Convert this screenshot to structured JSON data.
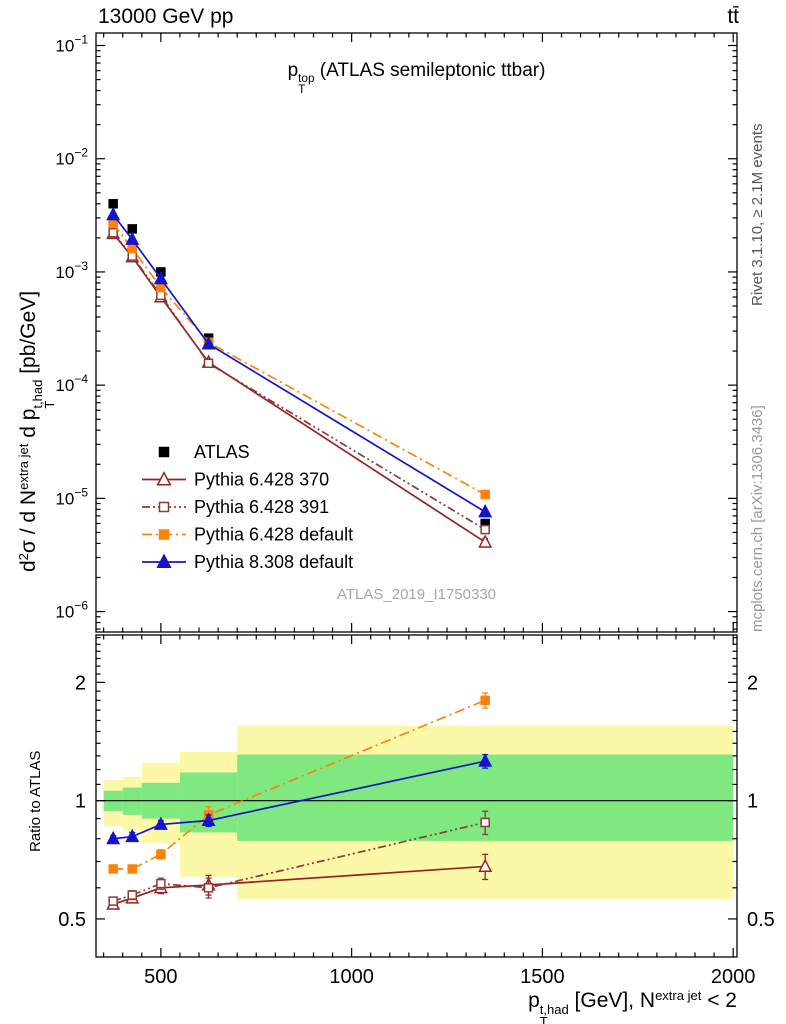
{
  "labels": {
    "header_left": "13000 GeV pp",
    "header_right": "tt̄",
    "title": {
      "base": "p",
      "sup": "top",
      "sub": "T",
      "rest": " (ATLAS semileptonic ttbar)"
    },
    "watermark": "ATLAS_2019_I1750330",
    "rivet": "Rivet 3.1.10, ≥ 2.1M events",
    "mcplots": "mcplots.cern.ch [arXiv:1306.3436]",
    "ylabel": {
      "p1": "d",
      "sup1": "2",
      "p2": "σ / d N",
      "sup2": "extra jet",
      "p3": " d p",
      "sup3": "t,had",
      "sub3": "T",
      "p4": " [pb/GeV]"
    },
    "ratio_ylabel": "Ratio to ATLAS",
    "xlabel": {
      "p1": "p",
      "sup1": "t,had",
      "sub1": "T",
      "p2": " [GeV], N",
      "sup2": "extra jet",
      "p3": " < 2"
    }
  },
  "chart_data": {
    "type": "line",
    "title": "pT^top (ATLAS semileptonic ttbar)",
    "xlabel": "pT^t,had [GeV], N^extra jet < 2",
    "ylabel": "d2sigma / d N^extra jet d pT^t,had [pb/GeV]",
    "ratio_label": "Ratio to ATLAS",
    "x": {
      "lim": [
        330,
        2010
      ],
      "major_ticks": [
        500,
        1000,
        1500,
        2000
      ],
      "minor_step": 50,
      "bin_edges": [
        350,
        400,
        450,
        550,
        700,
        2000
      ],
      "centers": [
        375,
        425,
        500,
        625,
        1350
      ]
    },
    "top_panel": {
      "ylog": true,
      "ylim": [
        6.6e-07,
        0.129
      ],
      "decade_ticks": [
        -1,
        -2,
        -3,
        -4,
        -5,
        -6
      ]
    },
    "ratio_panel": {
      "ylog": true,
      "ylim": [
        0.4,
        2.64
      ],
      "major_ticks": [
        {
          "v": 2,
          "label": "2"
        },
        {
          "v": 1,
          "label": "1"
        },
        {
          "v": 0.5,
          "label": "0.5"
        }
      ]
    },
    "bands": {
      "yellow_color": "#fbf8a8",
      "green_color": "#7fe87f",
      "yellow_lo": [
        0.86,
        0.84,
        0.78,
        0.64,
        0.56
      ],
      "yellow_hi": [
        1.13,
        1.15,
        1.25,
        1.33,
        1.55
      ],
      "green_lo": [
        0.94,
        0.92,
        0.9,
        0.83,
        0.79
      ],
      "green_hi": [
        1.06,
        1.08,
        1.11,
        1.18,
        1.31
      ]
    },
    "series": [
      {
        "name": "ATLAS",
        "color": "#000000",
        "marker": "square",
        "filled": true,
        "line": "none",
        "values": [
          0.004,
          0.0024,
          0.001,
          0.00026,
          6e-06
        ],
        "err_frac": [
          0.03,
          0.03,
          0.035,
          0.04,
          0.08
        ]
      },
      {
        "name": "Pythia 6.428 370",
        "color": "#992020",
        "marker": "triangle",
        "filled": false,
        "line": "solid",
        "values": [
          0.00218,
          0.00136,
          0.0006,
          0.000159,
          4.1e-06
        ],
        "ratio": [
          0.545,
          0.565,
          0.6,
          0.61,
          0.68
        ],
        "ratio_err": [
          0.012,
          0.015,
          0.02,
          0.035,
          0.05
        ]
      },
      {
        "name": "Pythia 6.428 391",
        "color": "#8b3a3a",
        "marker": "square",
        "filled": false,
        "line": "dashdotdot",
        "values": [
          0.00222,
          0.00138,
          0.00062,
          0.000156,
          5.3e-06
        ],
        "ratio": [
          0.555,
          0.575,
          0.615,
          0.6,
          0.88
        ],
        "ratio_err": [
          0.012,
          0.015,
          0.02,
          0.035,
          0.06
        ]
      },
      {
        "name": "Pythia 6.428 default",
        "color": "#ff8208",
        "marker": "square",
        "filled": true,
        "line": "dashdot",
        "values": [
          0.00268,
          0.00161,
          0.00073,
          0.000239,
          1.08e-05
        ],
        "ratio": [
          0.67,
          0.67,
          0.73,
          0.92,
          1.8
        ],
        "ratio_err": [
          0.012,
          0.015,
          0.02,
          0.045,
          0.08
        ]
      },
      {
        "name": "Pythia 8.308 default",
        "color": "#1414cc",
        "marker": "triangle",
        "filled": true,
        "line": "solid",
        "values": [
          0.0032,
          0.00194,
          0.00087,
          0.000231,
          7.6e-06
        ],
        "ratio": [
          0.8,
          0.81,
          0.87,
          0.89,
          1.26
        ],
        "ratio_err": [
          0.015,
          0.02,
          0.02,
          0.03,
          0.05
        ]
      }
    ]
  }
}
